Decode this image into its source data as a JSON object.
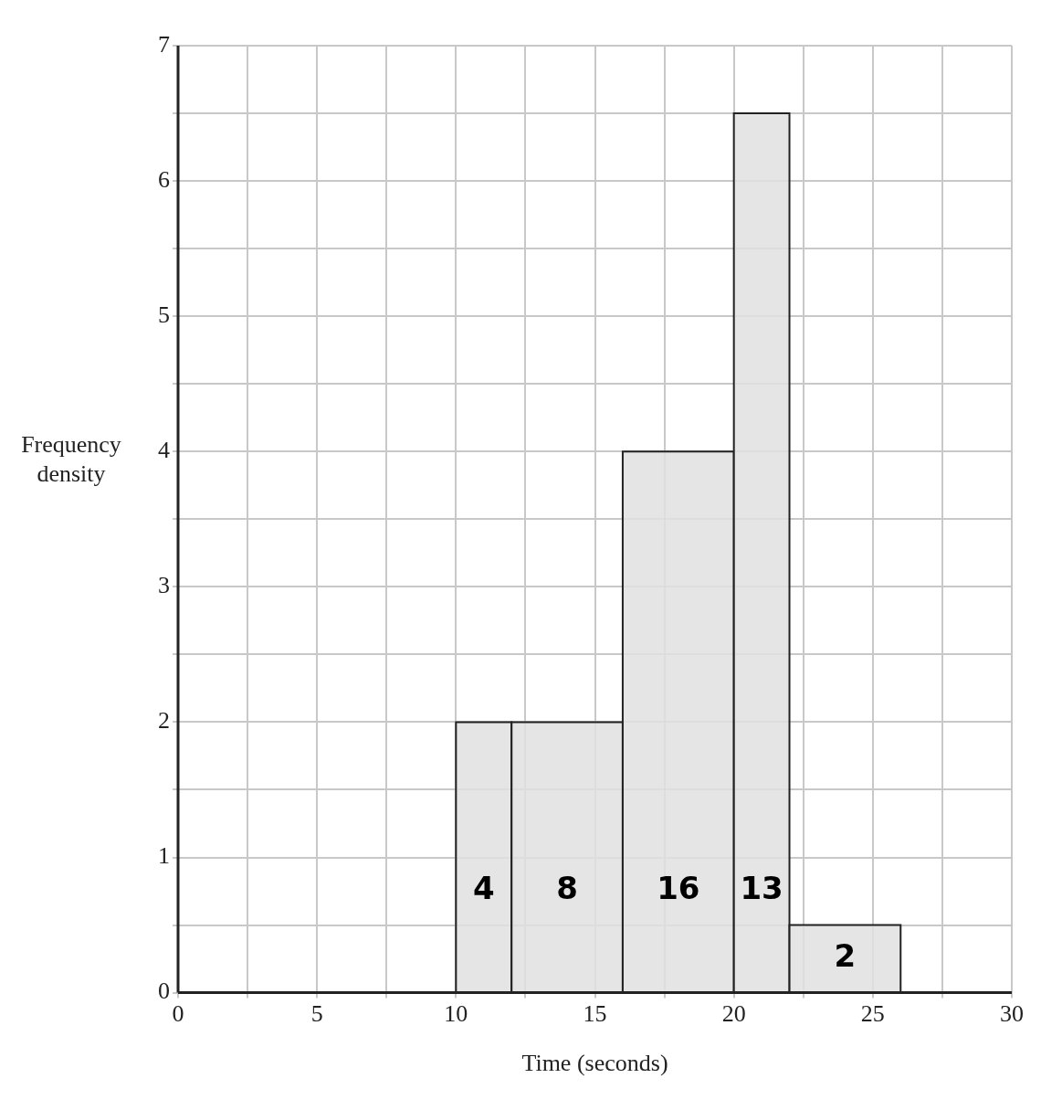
{
  "chart_data": {
    "type": "histogram",
    "xlabel": "Time (seconds)",
    "ylabel": "Frequency density",
    "bins": [
      10,
      12,
      16,
      20,
      22,
      26
    ],
    "values": [
      2,
      2,
      4,
      6.5,
      0.5
    ],
    "annotations": [
      "4",
      "8",
      "16",
      "13",
      "2"
    ],
    "color": "#e0e0e0",
    "xlim": [
      0,
      30
    ],
    "ylim": [
      0,
      7
    ],
    "xticks": [
      0,
      {
        "value": 2.5,
        "label": null
      },
      5,
      {
        "value": 7.5,
        "label": null
      },
      10,
      {
        "value": 12.5,
        "label": null
      },
      15,
      {
        "value": 17.5,
        "label": null
      },
      20,
      {
        "value": 22.5,
        "label": null
      },
      25,
      {
        "value": 27.5,
        "label": null
      },
      30
    ],
    "yticks": [
      0,
      {
        "value": 0.5,
        "label": null
      },
      1,
      {
        "value": 1.5,
        "label": null
      },
      2,
      {
        "value": 2.5,
        "label": null
      },
      3,
      {
        "value": 3.5,
        "label": null
      },
      4,
      {
        "value": 4.5,
        "label": null
      },
      5,
      {
        "value": 5.5,
        "label": null
      },
      6,
      {
        "value": 6.5,
        "label": null
      },
      7
    ],
    "grid": true
  }
}
